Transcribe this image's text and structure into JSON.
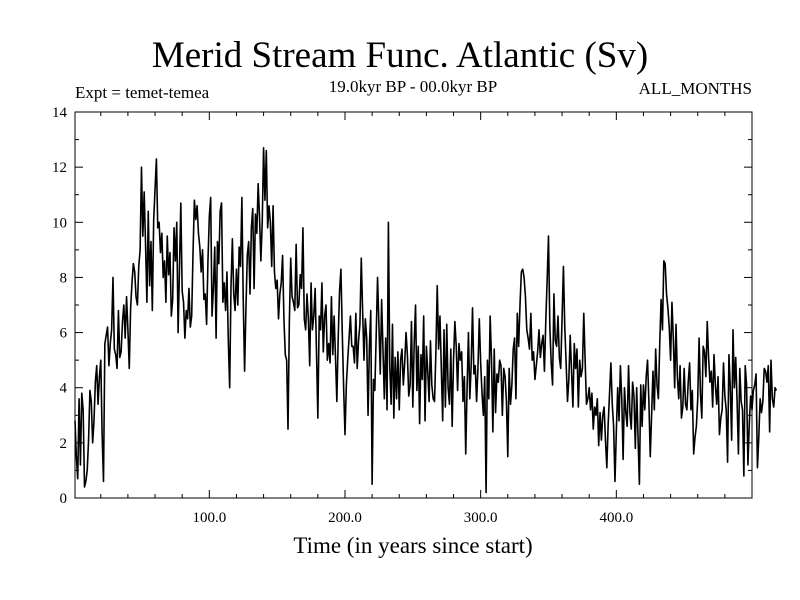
{
  "chart_data": {
    "type": "line",
    "title": "Merid Stream Func. Atlantic (Sv)",
    "experiment_label": "Expt = temet-temea",
    "period_label": "19.0kyr BP - 00.0kyr BP",
    "months_label": "ALL_MONTHS",
    "xlabel": "Time (in years since start)",
    "ylabel": "",
    "xlim": [
      1,
      500
    ],
    "ylim": [
      0,
      14
    ],
    "x_ticks": [
      100,
      200,
      300,
      400
    ],
    "x_tick_labels": [
      "100.0",
      "200.0",
      "300.0",
      "400.0"
    ],
    "y_ticks": [
      0,
      2,
      4,
      6,
      8,
      10,
      12,
      14
    ],
    "y_tick_labels": [
      "0",
      "2",
      "4",
      "6",
      "8",
      "10",
      "12",
      "14"
    ],
    "series": [
      {
        "name": "temet-temea",
        "color": "#000000",
        "x_start": 1,
        "x_step": 1,
        "values": [
          2.8,
          1.5,
          0.7,
          3.6,
          1.2,
          3.8,
          3.2,
          0.4,
          0.6,
          1.0,
          2.1,
          3.9,
          3.5,
          2.0,
          2.8,
          4.2,
          4.8,
          3.4,
          4.4,
          5.0,
          2.3,
          0.6,
          5.6,
          5.9,
          6.2,
          4.8,
          5.6,
          6.1,
          8.0,
          5.4,
          5.2,
          4.7,
          6.8,
          5.1,
          5.3,
          6.4,
          7.0,
          5.8,
          7.3,
          6.1,
          4.7,
          6.9,
          7.8,
          8.5,
          8.2,
          7.3,
          7.0,
          8.4,
          9.0,
          12.0,
          9.5,
          11.1,
          9.2,
          7.1,
          10.4,
          7.7,
          9.3,
          6.8,
          10.1,
          11.2,
          12.3,
          9.8,
          10.0,
          8.9,
          9.6,
          8.0,
          8.6,
          7.1,
          9.5,
          8.1,
          8.9,
          6.6,
          7.2,
          9.8,
          8.6,
          10.0,
          6.0,
          8.3,
          10.7,
          7.5,
          7.1,
          5.8,
          6.8,
          6.5,
          7.6,
          6.2,
          6.6,
          8.9,
          10.8,
          10.1,
          10.6,
          9.6,
          9.1,
          8.2,
          9.0,
          7.2,
          7.4,
          6.3,
          8.6,
          10.2,
          10.9,
          6.6,
          7.6,
          9.1,
          5.8,
          9.3,
          8.5,
          10.4,
          10.7,
          7.1,
          7.8,
          6.8,
          8.2,
          5.7,
          4.0,
          7.7,
          9.4,
          7.4,
          6.8,
          8.3,
          7.0,
          9.1,
          8.4,
          10.9,
          7.2,
          4.6,
          6.9,
          8.8,
          9.3,
          7.4,
          9.8,
          10.5,
          7.6,
          10.3,
          9.6,
          11.4,
          10.2,
          8.6,
          10.0,
          12.7,
          10.8,
          12.6,
          9.8,
          10.6,
          10.0,
          8.4,
          10.6,
          8.2,
          7.6,
          7.9,
          6.5,
          7.4,
          7.8,
          8.8,
          6.5,
          5.2,
          5.0,
          2.5,
          6.4,
          8.7,
          7.3,
          7.1,
          6.8,
          9.2,
          6.9,
          7.0,
          8.1,
          7.6,
          9.8,
          6.5,
          6.1,
          7.4,
          6.5,
          4.8,
          7.8,
          6.1,
          6.6,
          7.6,
          5.3,
          2.9,
          6.6,
          6.1,
          7.8,
          5.3,
          6.6,
          7.0,
          5.0,
          5.6,
          4.9,
          7.3,
          5.2,
          6.6,
          5.1,
          3.5,
          5.8,
          7.5,
          8.3,
          6.0,
          4.0,
          2.3,
          4.1,
          5.0,
          5.8,
          6.6,
          5.5,
          5.5,
          4.9,
          6.7,
          4.7,
          5.7,
          6.3,
          8.7,
          6.8,
          5.0,
          6.5,
          5.8,
          3.0,
          5.5,
          6.8,
          0.5,
          4.3,
          3.9,
          5.9,
          8.0,
          6.3,
          4.5,
          7.2,
          5.4,
          3.6,
          5.8,
          3.2,
          10.0,
          4.8,
          3.4,
          6.3,
          2.9,
          5.1,
          3.6,
          5.3,
          3.2,
          5.0,
          5.4,
          4.1,
          4.9,
          6.0,
          5.2,
          3.7,
          4.1,
          6.4,
          3.3,
          5.6,
          7.0,
          3.9,
          5.5,
          2.7,
          5.2,
          4.3,
          6.6,
          2.8,
          5.5,
          4.6,
          3.5,
          5.7,
          4.1,
          3.6,
          3.5,
          5.3,
          7.7,
          5.4,
          6.6,
          4.7,
          2.8,
          6.1,
          3.3,
          6.3,
          4.0,
          3.4,
          5.4,
          2.6,
          5.0,
          6.4,
          5.5,
          3.9,
          5.6,
          5.0,
          5.3,
          3.5,
          4.4,
          1.6,
          4.0,
          6.0,
          3.6,
          4.8,
          6.9,
          4.5,
          4.8,
          3.5,
          4.7,
          6.5,
          4.9,
          3.8,
          3.0,
          4.4,
          0.2,
          5.0,
          3.6,
          6.6,
          5.0,
          2.4,
          5.4,
          3.1,
          4.5,
          4.2,
          5.0,
          4.8,
          3.0,
          4.7,
          4.4,
          3.5,
          1.5,
          4.7,
          3.4,
          4.1,
          5.4,
          5.8,
          3.6,
          6.7,
          5.5,
          7.0,
          8.2,
          8.3,
          8.0,
          7.3,
          6.1,
          5.8,
          5.4,
          6.7,
          5.0,
          5.3,
          4.3,
          4.8,
          5.3,
          6.1,
          5.1,
          5.6,
          5.9,
          4.6,
          6.4,
          7.9,
          9.5,
          6.2,
          4.9,
          4.1,
          7.4,
          5.7,
          5.5,
          6.6,
          5.1,
          4.7,
          6.5,
          8.4,
          6.2,
          4.9,
          3.5,
          4.3,
          5.9,
          4.6,
          3.3,
          5.6,
          4.7,
          5.4,
          3.3,
          5.0,
          4.4,
          4.7,
          6.7,
          5.0,
          3.4,
          3.6,
          4.0,
          3.2,
          3.8,
          2.5,
          3.3,
          3.0,
          3.6,
          1.9,
          3.1,
          2.1,
          3.0,
          3.3,
          2.1,
          1.1,
          2.7,
          3.8,
          4.9,
          3.4,
          2.6,
          0.6,
          2.4,
          4.0,
          2.8,
          4.8,
          3.6,
          1.4,
          4.0,
          3.1,
          2.6,
          4.8,
          3.1,
          2.5,
          4.2,
          3.7,
          1.8,
          4.0,
          2.2,
          0.5,
          4.1,
          2.6,
          4.1,
          3.2,
          4.4,
          5.0,
          3.5,
          1.5,
          3.0,
          4.6,
          3.2,
          5.4,
          4.1,
          3.6,
          5.6,
          7.2,
          6.1,
          8.6,
          8.5,
          7.4,
          6.9,
          6.2,
          5.0,
          7.1,
          5.8,
          4.0,
          6.3,
          4.4,
          3.6,
          4.8,
          2.9,
          3.3,
          4.7,
          3.4,
          3.2,
          4.2,
          4.9,
          3.2,
          3.9,
          1.6,
          2.2,
          2.6,
          3.6,
          5.8,
          3.8,
          2.9,
          5.5,
          5.3,
          4.4,
          6.4,
          5.1,
          4.2,
          4.6,
          3.3,
          5.2,
          4.1,
          3.4,
          4.4,
          2.3,
          2.9,
          3.2,
          4.9,
          3.7,
          3.2,
          1.3,
          5.2,
          4.0,
          2.1,
          6.1,
          4.0,
          5.1,
          3.5,
          1.6,
          4.7,
          3.5,
          3.2,
          0.8,
          4.8,
          4.1,
          1.2,
          2.7,
          3.7,
          3.2,
          3.9,
          4.1,
          4.5,
          1.1,
          2.2,
          3.6,
          3.1,
          3.5,
          4.7,
          4.6,
          4.2,
          4.8,
          2.4,
          5.0,
          3.6,
          3.3,
          4.0,
          3.9
        ]
      }
    ]
  }
}
